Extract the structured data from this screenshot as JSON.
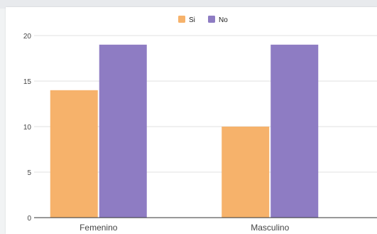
{
  "chart_data": {
    "type": "bar",
    "categories": [
      "Femenino",
      "Masculino"
    ],
    "series": [
      {
        "name": "Si",
        "values": [
          14,
          10
        ],
        "color": "#f6b26b"
      },
      {
        "name": "No",
        "values": [
          19,
          19
        ],
        "color": "#8e7cc3"
      }
    ],
    "title": "",
    "xlabel": "",
    "ylabel": "",
    "ylim": [
      0,
      20
    ],
    "yticks": [
      0,
      5,
      10,
      15,
      20
    ],
    "grid": true,
    "legend_position": "top-center"
  },
  "colors": {
    "grid": "#e0e0e0",
    "axis": "#333333",
    "text": "#444444"
  }
}
